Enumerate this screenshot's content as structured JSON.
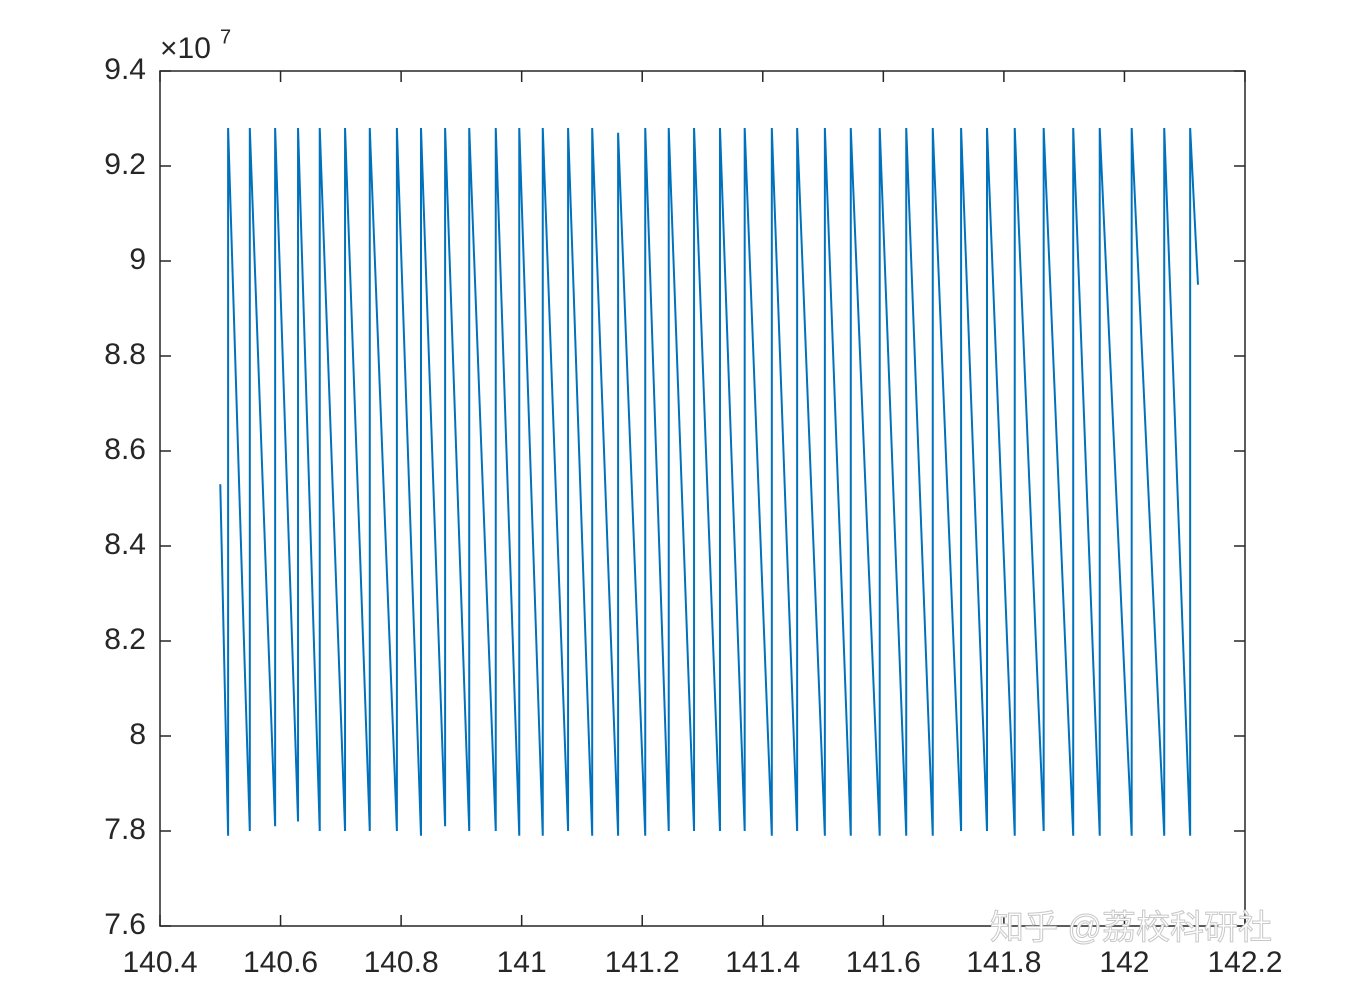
{
  "chart_data": {
    "type": "line",
    "exponent_label": "×10",
    "exponent_power": "7",
    "watermark": "知乎 @荔校科研社",
    "xlim": [
      140.4,
      142.2
    ],
    "xticks": [
      140.4,
      140.6,
      140.8,
      141,
      141.2,
      141.4,
      141.6,
      141.8,
      142,
      142.2
    ],
    "ylim": [
      7.6,
      9.4
    ],
    "yticks": [
      7.6,
      7.8,
      8,
      8.2,
      8.4,
      8.6,
      8.8,
      9,
      9.2,
      9.4
    ],
    "grid": false,
    "series": [
      {
        "color": "#0072bd",
        "x": [
          140.5,
          140.513,
          140.513,
          140.549,
          140.549,
          140.591,
          140.591,
          140.629,
          140.629,
          140.665,
          140.665,
          140.707,
          140.707,
          140.748,
          140.748,
          140.793,
          140.793,
          140.833,
          140.833,
          140.873,
          140.873,
          140.913,
          140.913,
          140.957,
          140.957,
          140.996,
          140.996,
          141.035,
          141.035,
          141.077,
          141.077,
          141.117,
          141.117,
          141.16,
          141.16,
          141.205,
          141.205,
          141.244,
          141.244,
          141.286,
          141.286,
          141.329,
          141.329,
          141.37,
          141.37,
          141.415,
          141.415,
          141.457,
          141.457,
          141.503,
          141.503,
          141.546,
          141.546,
          141.594,
          141.594,
          141.638,
          141.638,
          141.682,
          141.682,
          141.729,
          141.729,
          141.772,
          141.772,
          141.818,
          141.818,
          141.866,
          141.866,
          141.915,
          141.915,
          141.959,
          141.959,
          142.012,
          142.012,
          142.066,
          142.066,
          142.109,
          142.109,
          142.122
        ],
        "values": [
          8.53,
          7.79,
          9.28,
          7.8,
          9.28,
          7.81,
          9.28,
          7.82,
          9.28,
          7.8,
          9.28,
          7.8,
          9.28,
          7.8,
          9.28,
          7.8,
          9.28,
          7.79,
          9.28,
          7.81,
          9.28,
          7.8,
          9.28,
          7.8,
          9.28,
          7.79,
          9.28,
          7.79,
          9.28,
          7.8,
          9.28,
          7.79,
          9.28,
          7.79,
          9.27,
          7.79,
          9.28,
          7.8,
          9.28,
          7.8,
          9.28,
          7.8,
          9.28,
          7.8,
          9.28,
          7.79,
          9.28,
          7.8,
          9.28,
          7.79,
          9.28,
          7.79,
          9.28,
          7.79,
          9.28,
          7.79,
          9.28,
          7.79,
          9.28,
          7.8,
          9.28,
          7.8,
          9.28,
          7.79,
          9.28,
          7.8,
          9.28,
          7.79,
          9.28,
          7.79,
          9.28,
          7.79,
          9.28,
          7.79,
          9.28,
          7.79,
          9.28,
          8.95
        ]
      }
    ]
  }
}
